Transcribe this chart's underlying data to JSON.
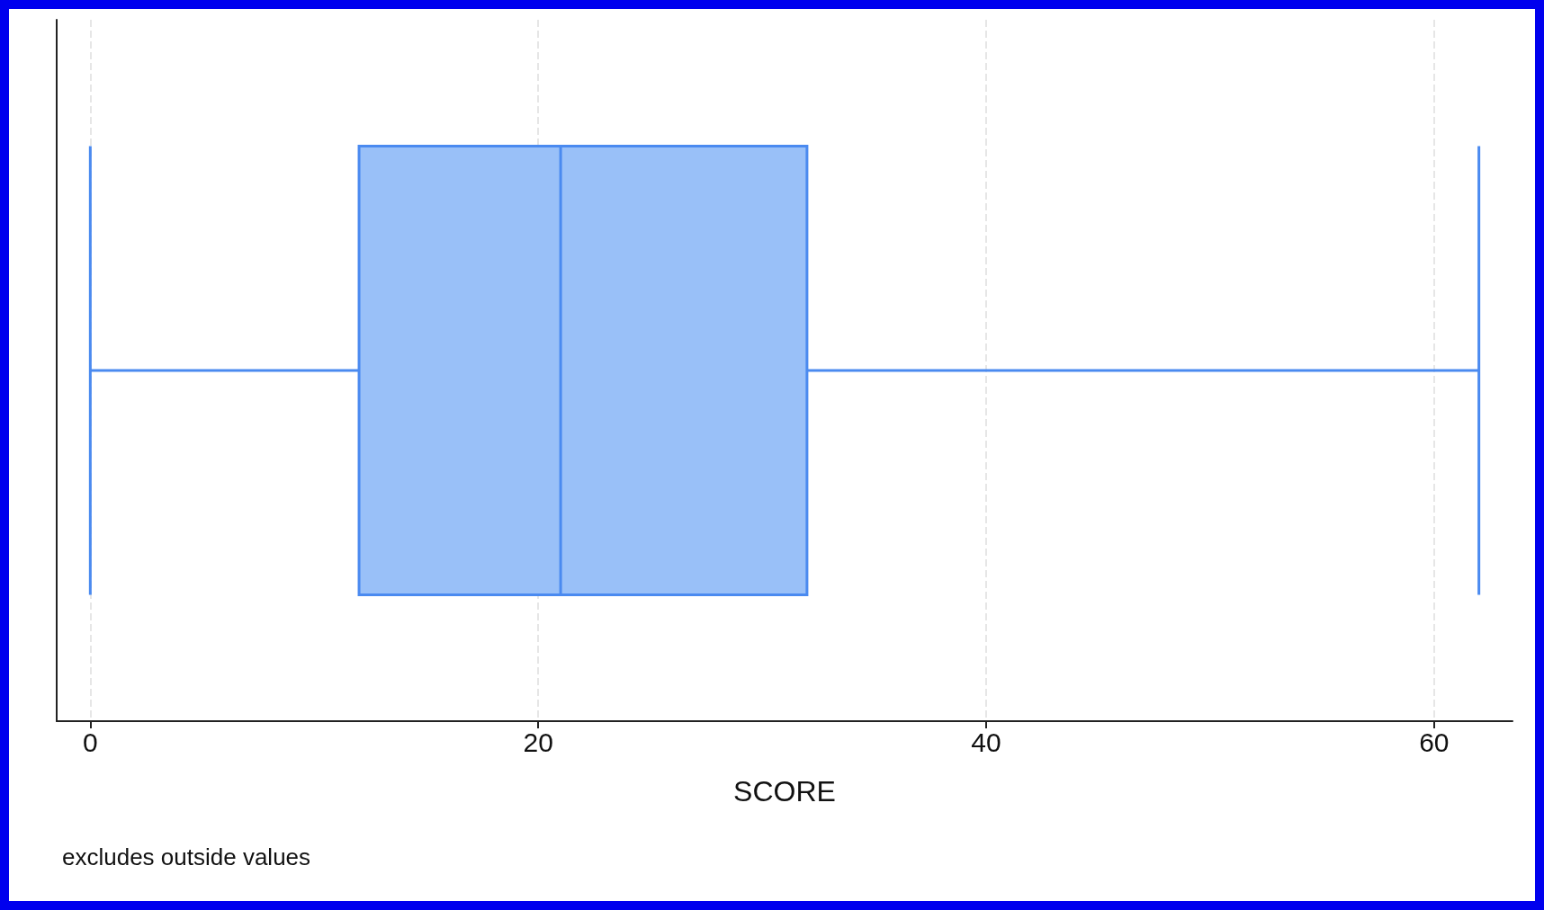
{
  "chart_data": {
    "type": "box",
    "orientation": "horizontal",
    "categories": [
      null
    ],
    "series": [
      {
        "color": "#99c0f8",
        "boxes": [
          {
            "low": 0,
            "q1": 12,
            "median": 21,
            "q3": 32,
            "high": 62
          }
        ]
      }
    ],
    "xlabel": "SCORE",
    "xlim": [
      -1.5,
      63.5
    ],
    "xticks": [
      0,
      20,
      40,
      60
    ],
    "grid": "x",
    "tick_labels": "x",
    "annotations": [
      "excludes outside values"
    ]
  }
}
